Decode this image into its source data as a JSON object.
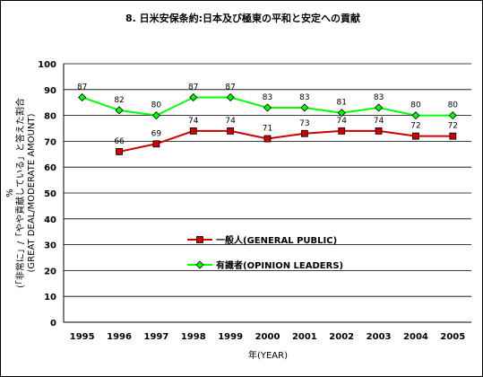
{
  "chart_data": {
    "type": "line",
    "title": "8. 日米安保条約:日本及び極東の平和と安定への貢献",
    "xlabel": "年(YEAR)",
    "ylabel_lines": [
      "%",
      "(「非常に」/「やや貢献している」と答えた割合",
      "(GREAT DEAL/MODERATE AMOUNT)"
    ],
    "x": [
      "1995",
      "1996",
      "1997",
      "1998",
      "1999",
      "2000",
      "2001",
      "2002",
      "2003",
      "2004",
      "2005"
    ],
    "ylim": [
      0,
      100
    ],
    "yticks": [
      "0",
      "10",
      "20",
      "30",
      "40",
      "50",
      "60",
      "70",
      "80",
      "90",
      "100"
    ],
    "grid": true,
    "legend_position": "center-right",
    "series": [
      {
        "name": "一般人(GENERAL PUBLIC)",
        "color": "#cc0000",
        "marker": "square",
        "values": [
          null,
          66,
          69,
          74,
          74,
          71,
          73,
          74,
          74,
          72,
          72
        ]
      },
      {
        "name": "有識者(OPINION LEADERS)",
        "color": "#00ff00",
        "marker": "diamond",
        "values": [
          87,
          82,
          80,
          87,
          87,
          83,
          83,
          81,
          83,
          80,
          80
        ]
      }
    ]
  }
}
